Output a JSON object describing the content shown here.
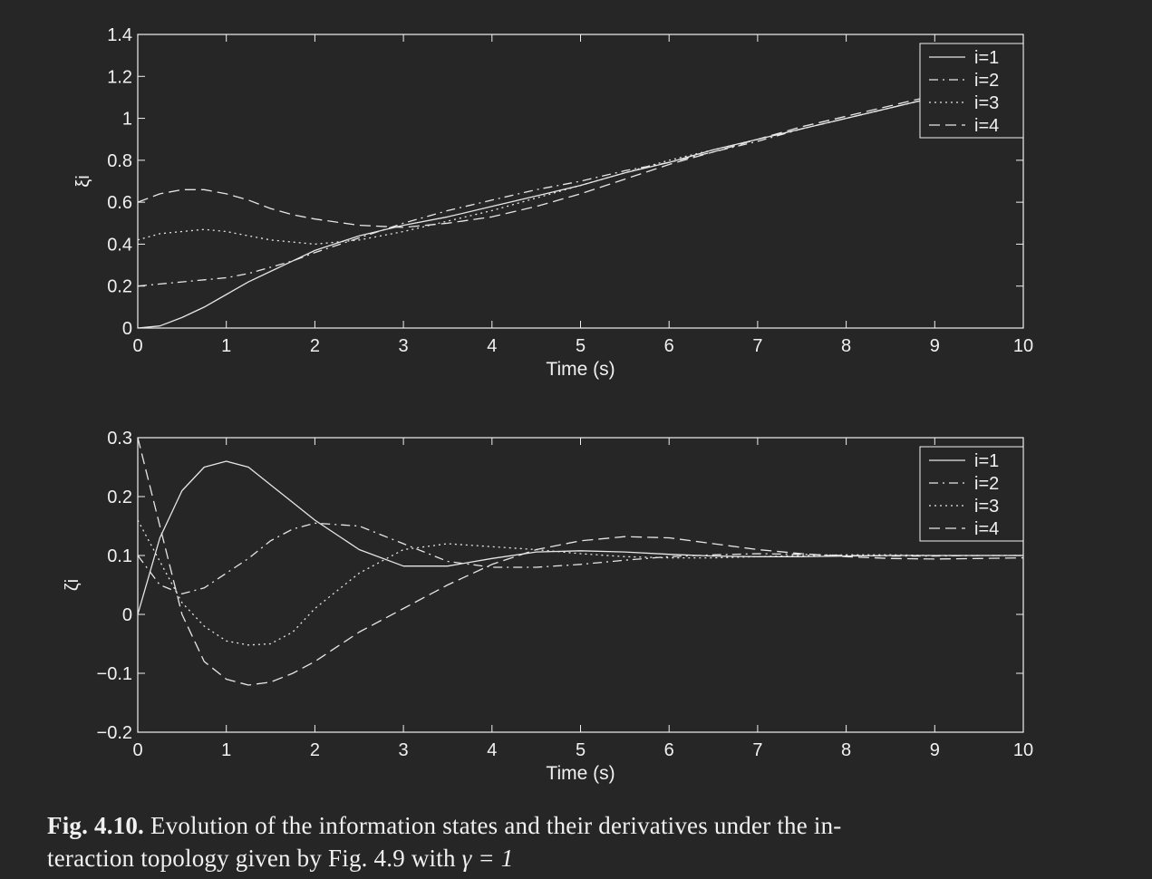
{
  "chart_data": [
    {
      "type": "line",
      "title": "",
      "xlabel": "Time (s)",
      "ylabel": "ξi",
      "xlim": [
        0,
        10
      ],
      "ylim": [
        0,
        1.4
      ],
      "xticks": [
        "0",
        "1",
        "2",
        "3",
        "4",
        "5",
        "6",
        "7",
        "8",
        "9",
        "10"
      ],
      "yticks": [
        "0",
        "0.2",
        "0.4",
        "0.6",
        "0.8",
        "1",
        "1.2",
        "1.4"
      ],
      "legend_position": "top-right",
      "grid": false,
      "x": [
        0,
        0.25,
        0.5,
        0.75,
        1,
        1.25,
        1.5,
        1.75,
        2,
        2.5,
        3,
        3.5,
        4,
        4.5,
        5,
        5.5,
        6,
        6.5,
        7,
        7.5,
        8,
        8.5,
        9,
        9.5,
        10
      ],
      "series": [
        {
          "name": "i=1",
          "style": "solid",
          "values": [
            0,
            0.01,
            0.05,
            0.1,
            0.16,
            0.22,
            0.27,
            0.32,
            0.37,
            0.44,
            0.49,
            0.53,
            0.58,
            0.63,
            0.68,
            0.74,
            0.79,
            0.85,
            0.9,
            0.95,
            1.0,
            1.05,
            1.1,
            1.15,
            1.2
          ]
        },
        {
          "name": "i=2",
          "style": "dashdot",
          "values": [
            0.2,
            0.21,
            0.22,
            0.23,
            0.24,
            0.26,
            0.29,
            0.32,
            0.36,
            0.43,
            0.5,
            0.56,
            0.61,
            0.66,
            0.7,
            0.75,
            0.79,
            0.84,
            0.89,
            0.95,
            1.0,
            1.05,
            1.1,
            1.15,
            1.2
          ]
        },
        {
          "name": "i=3",
          "style": "dotted",
          "values": [
            0.42,
            0.45,
            0.46,
            0.47,
            0.46,
            0.44,
            0.42,
            0.41,
            0.4,
            0.42,
            0.46,
            0.51,
            0.56,
            0.62,
            0.68,
            0.74,
            0.8,
            0.85,
            0.9,
            0.95,
            1.0,
            1.05,
            1.1,
            1.15,
            1.2
          ]
        },
        {
          "name": "i=4",
          "style": "dashed",
          "values": [
            0.6,
            0.64,
            0.66,
            0.66,
            0.64,
            0.61,
            0.57,
            0.54,
            0.52,
            0.49,
            0.48,
            0.5,
            0.53,
            0.58,
            0.64,
            0.71,
            0.78,
            0.84,
            0.9,
            0.96,
            1.01,
            1.06,
            1.11,
            1.16,
            1.2
          ]
        }
      ]
    },
    {
      "type": "line",
      "title": "",
      "xlabel": "Time (s)",
      "ylabel": "ζi",
      "xlim": [
        0,
        10
      ],
      "ylim": [
        -0.2,
        0.3
      ],
      "xticks": [
        "0",
        "1",
        "2",
        "3",
        "4",
        "5",
        "6",
        "7",
        "8",
        "9",
        "10"
      ],
      "yticks": [
        "−0.2",
        "−0.1",
        "0",
        "0.1",
        "0.2",
        "0.3"
      ],
      "legend_position": "top-right",
      "grid": false,
      "x": [
        0,
        0.25,
        0.5,
        0.75,
        1,
        1.25,
        1.5,
        1.75,
        2,
        2.5,
        3,
        3.5,
        4,
        4.5,
        5,
        5.5,
        6,
        6.5,
        7,
        7.5,
        8,
        8.5,
        9,
        9.5,
        10
      ],
      "series": [
        {
          "name": "i=1",
          "style": "solid",
          "values": [
            0,
            0.13,
            0.21,
            0.25,
            0.26,
            0.25,
            0.22,
            0.19,
            0.16,
            0.11,
            0.082,
            0.082,
            0.095,
            0.106,
            0.108,
            0.106,
            0.102,
            0.099,
            0.098,
            0.098,
            0.099,
            0.1,
            0.1,
            0.1,
            0.1
          ]
        },
        {
          "name": "i=2",
          "style": "dashdot",
          "values": [
            0.1,
            0.05,
            0.035,
            0.045,
            0.07,
            0.095,
            0.125,
            0.145,
            0.155,
            0.15,
            0.12,
            0.09,
            0.08,
            0.08,
            0.085,
            0.092,
            0.098,
            0.101,
            0.103,
            0.102,
            0.1,
            0.099,
            0.099,
            0.1,
            0.1
          ]
        },
        {
          "name": "i=3",
          "style": "dotted",
          "values": [
            0.16,
            0.09,
            0.02,
            -0.02,
            -0.045,
            -0.052,
            -0.05,
            -0.03,
            0.01,
            0.07,
            0.11,
            0.12,
            0.115,
            0.11,
            0.103,
            0.098,
            0.096,
            0.096,
            0.098,
            0.1,
            0.101,
            0.101,
            0.1,
            0.1,
            0.1
          ]
        },
        {
          "name": "i=4",
          "style": "dashed",
          "values": [
            0.3,
            0.15,
            0.0,
            -0.08,
            -0.11,
            -0.12,
            -0.115,
            -0.1,
            -0.08,
            -0.03,
            0.01,
            0.05,
            0.085,
            0.11,
            0.125,
            0.132,
            0.13,
            0.12,
            0.11,
            0.103,
            0.098,
            0.095,
            0.094,
            0.095,
            0.096
          ]
        }
      ]
    }
  ],
  "caption": {
    "label": "Fig. 4.10.",
    "text": "Evolution of the information states and their derivatives under the in-",
    "text_line2": "teraction topology given by Fig. 4.9 with",
    "gamma_eq": "γ = 1"
  },
  "colors": {
    "background": "#262626",
    "foreground": "#f0f0f0",
    "series": "#e6e6e6"
  }
}
